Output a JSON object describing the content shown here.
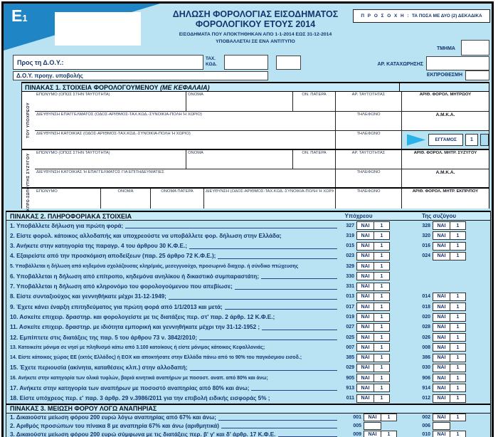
{
  "colors": {
    "page_blue": "#b9e2f3",
    "band_blue": "#c9ecfa",
    "logo_blue": "#1f85c4",
    "marker_cyan": "#29b2e8",
    "text_navy": "#16356f"
  },
  "header": {
    "form_code_main": "E",
    "form_code_sub": "1",
    "title_line1": "ΔΗΛΩΣΗ ΦΟΡΟΛΟΓΙΑΣ ΕΙΣΟΔΗΜΑΤΟΣ",
    "title_line2": "ΦΟΡΟΛΟΓΙΚΟΥ ΕΤΟΥΣ 2014",
    "subtitle_line1": "ΕΙΣΟΔΗΜΑΤΑ ΠΟΥ ΑΠΟΚΤΗΘΗΚΑΝ ΑΠΟ 1-1-2014 ΕΩΣ 31-12-2014",
    "subtitle_line2": "ΥΠΟΒΑΛΛΕΤΑΙ ΣΕ ΕΝΑ ΑΝΤΙΤΥΠΟ",
    "attention_label": "Π Ρ Ο Σ Ο Χ Η :",
    "attention_text": "ΤΑ ΠΟΣΑ ΜΕ ΔΥΟ (2) ΔΕΚΑΔΙΚΑ",
    "tmima_label": "ΤΜΗΜΑ",
    "ar_kataxorisis_label": "ΑΡ. ΚΑΤΑΧΩΡΗΣΗΣ",
    "ekprothesmi_label": "ΕΚΠΡΟΘΕΣΜΗ",
    "pros_doy_label": "Προς τη Δ.Ο.Υ.:",
    "tax_label": "ΤΑΧ.",
    "kod_label": "ΚΩΔ.",
    "doy_proig_label": "Δ.Ο.Υ. προηγ. υποβολής"
  },
  "table1": {
    "title": "ΠΙΝΑΚΑΣ 1.",
    "subtitle": "ΣΤΟΙΧΕΙΑ ΦΟΡΟΛΟΓΟΥΜΕΝΟΥ",
    "subtitle_caps": "(ΜΕ ΚΕΦΑΛΑΙΑ)",
    "obligor_label": "ΤΟΥ ΥΠΟΧΡΕΟΥ",
    "spouse_label": "ΤΗΣ ΣΥΖΥΓΟΥ",
    "rep_label": "ΕΚΠΡΟ-ΣΩΠΟΥ",
    "u1": {
      "eponymo": "ΕΠΩΝΥΜΟ (ΟΠΩΣ ΣΤΗΝ ΤΑΥΤΟΤΗΤΑ)",
      "onoma": "ΟΝΟΜΑ",
      "on_patera": "ΟΝ. ΠΑΤΕΡΑ",
      "ar_taytotitas": "ΑΡ. ΤΑΥΤΟΤΗΤΑΣ",
      "afm": "ΑΡΙΘ. ΦΟΡΟΛ. ΜΗΤΡΩΟΥ"
    },
    "u2": {
      "diefthynsi": "ΔΙΕΥΘΥΝΣΗ ΕΠΑΓΓΕΛΜΑΤΟΣ (ΟΔΟΣ-ΑΡΙΘΜΟΣ-ΤΑΧ.ΚΩΔ.-ΣΥΝΟΙΚΙΑ-ΠΟΛΗ Ή ΧΩΡΙΟ)",
      "tilefono": "ΤΗΛΕΦΩΝΟ",
      "amka": "Α.Μ.Κ.Α."
    },
    "u3": {
      "diefthynsi": "ΔΙΕΥΘΥΝΣΗ ΚΑΤΟΙΚΙΑΣ (ΟΔΟΣ-ΑΡΙΘΜΟΣ-ΤΑΧ.ΚΩΔ.-ΣΥΝΟΙΚΙΑ-ΠΟΛΗ Ή ΧΩΡΙΟ)",
      "tilefono": "ΤΗΛΕΦΩΝΟ",
      "eggamos": "ΕΓΓΑΜΟΣ",
      "eggamos_value": "1"
    },
    "s1": {
      "eponymo": "ΕΠΩΝΥΜΟ (ΟΠΩΣ ΣΤΗΝ ΤΑΥΤΟΤΗΤΑ)",
      "onoma": "ΟΝΟΜΑ",
      "on_patera": "ΟΝ. ΠΑΤΕΡΑ",
      "ar_taytotitas": "ΑΡ. ΤΑΥΤΟΤΗΤΑΣ",
      "afm": "ΑΡΙΘ. ΦΟΡΟΛ. ΜΗΤΡ. ΣΥΖΥΓΟΥ"
    },
    "s2": {
      "diefthynsi": "ΔΙΕΥΘΥΝΣΗ ΚΑΤΟΙΚΙΑΣ Ή ΕΠΑΓΓΕΛΜΑΤΟΣ ΓΙΑ ΕΠΙΤΗΔΕΥΜΑΤΙΕΣ",
      "tilefono": "ΤΗΛΕΦΩΝΟ",
      "amka": "Α.Μ.Κ.Α."
    },
    "r1": {
      "eponymo": "ΕΠΩΝΥΜΟ",
      "onoma": "ΟΝΟΜΑ",
      "onoma_patera": "ΟΝΟΜΑ ΠΑΤΕΡΑ",
      "diefthynsi": "ΔΙΕΥΘΥΝΣΗ (ΟΔΟΣ-ΑΡΙΘΜΟΣ-ΤΑΧ.ΚΩΔ.-ΣΥΝΟΙΚΙΑ-ΠΟΛΗ Ή ΧΩΡΙΟ)",
      "tilefono": "ΤΗΛΕΦΩΝΟ",
      "afm": "ΑΡΙΘ. ΦΟΡΟΛ. ΜΗΤΡ. ΕΚΠΡ/ΠΟΥ"
    }
  },
  "table2": {
    "title": "ΠΙΝΑΚΑΣ 2.",
    "subtitle": "ΠΛΗΡΟΦΟΡΙΑΚΑ ΣΤΟΙΧΕΙΑ",
    "col_self": "Υπόχρεου",
    "col_spouse": "Της συζύγου",
    "yes_label": "ΝΑΙ",
    "rows": [
      {
        "num": "1.",
        "text": "Υποβάλλετε δήλωση για πρώτη φορά;",
        "leader": true,
        "self": {
          "code": "327",
          "value": "1"
        },
        "spouse": {
          "code": "328",
          "value": "1"
        }
      },
      {
        "num": "2.",
        "text": "Είστε φορολ. κάτοικος αλλοδαπής και υποχρεούστε να υποβάλλετε φορ. δήλωση στην Ελλάδα;",
        "leader": false,
        "self": {
          "code": "319",
          "value": "1"
        },
        "spouse": {
          "code": "320",
          "value": "1"
        }
      },
      {
        "num": "3.",
        "text": "Ανήκετε στην κατηγορία της παραγρ. 4 του άρθρου 30 Κ.Φ.Ε.;",
        "leader": true,
        "self": {
          "code": "015",
          "value": "1"
        },
        "spouse": {
          "code": "016",
          "value": "1"
        }
      },
      {
        "num": "4.",
        "text": "Εξαιρείστε από την προσκόμιση αποδείξεων (παρ. 25 άρθρο 72 Κ.Φ.Ε.);",
        "leader": true,
        "self": {
          "code": "023",
          "value": "1"
        },
        "spouse": {
          "code": "024",
          "value": "1"
        }
      },
      {
        "num": "5.",
        "text": "Υποβάλλεται η δήλωση από κηδεμόνα σχολάζουσας κληρ/μιάς, μεσεγγυούχο, προσωρινό διαχειρ. ή σύνδικο πτώχευσης",
        "leader": false,
        "self": {
          "code": "329",
          "value": "1"
        },
        "spouse": null
      },
      {
        "num": "6.",
        "text": "Υποβάλλεται η δήλωση από επίτροπο, κηδεμόνα ανηλίκου ή δικαστικό συμπαραστάτη;",
        "leader": true,
        "self": {
          "code": "330",
          "value": "1"
        },
        "spouse": null
      },
      {
        "num": "7.",
        "text": "Υποβάλλεται η δήλωση από κληρονόμο του φορολογούμενου που απεβίωσε;",
        "leader": true,
        "self": {
          "code": "331",
          "value": "1"
        },
        "spouse": null
      },
      {
        "num": "8.",
        "text": "Είστε συνταξιούχος και γεννηθήκατε μέχρι 31-12-1949;",
        "leader": true,
        "self": {
          "code": "013",
          "value": "1"
        },
        "spouse": {
          "code": "014",
          "value": "1"
        }
      },
      {
        "num": "9.",
        "text": "Έχετε κάνει έναρξη επιτηδεύματος για πρώτη φορά από 1/1/2013 και μετά;",
        "leader": true,
        "self": {
          "code": "017",
          "value": "1"
        },
        "spouse": {
          "code": "018",
          "value": "1"
        }
      },
      {
        "num": "10.",
        "text": "Ασκείτε επιχειρ. δραστηρ. και φορολογείστε με τις διατάξεις  περ. στ' παρ. 2 άρθρ. 12  Κ.Φ.Ε.;",
        "leader": false,
        "self": {
          "code": "019",
          "value": "1"
        },
        "spouse": {
          "code": "020",
          "value": "1"
        }
      },
      {
        "num": "11.",
        "text": "Ασκείτε επιχειρ. δραστηρ. με ιδιότητα εμπορική  και γεννηθήκατε μέχρι την 31-12-1952 ;",
        "leader": true,
        "self": {
          "code": "027",
          "value": "1"
        },
        "spouse": {
          "code": "028",
          "value": "1"
        }
      },
      {
        "num": "12.",
        "text": "Εμπίπτετε στις διατάξεις της παρ. 5 του άρθρου 73 ν. 3842/2010;",
        "leader": true,
        "self": {
          "code": "025",
          "value": "1"
        },
        "spouse": {
          "code": "026",
          "value": "1"
        }
      },
      {
        "num": "13.",
        "text": "Κατοικείτε μόνιμα σε νησί με πληθυσμό κάτω από 3.100 κατοίκους ή είστε μόνιμος κάτοικος Κεφαλλονιάς;",
        "leader": false,
        "self": {
          "code": "007",
          "value": "1"
        },
        "spouse": {
          "code": "008",
          "value": "1"
        }
      },
      {
        "num": "14.",
        "text": "Είστε κάτοικος χώρας ΕΕ (εκτός Ελλάδος) ή ΕΟΧ και αποκτήσατε στην Ελλάδα πάνω από το 90% του παγκόσμιου εισοδ.;",
        "leader": false,
        "self": {
          "code": "385",
          "value": "1"
        },
        "spouse": {
          "code": "386",
          "value": "1"
        }
      },
      {
        "num": "15.",
        "text": "Έχετε περιουσία (ακίνητα, καταθέσεις κλπ.)  στην αλλοδαπή;",
        "leader": true,
        "self": {
          "code": "029",
          "value": "1"
        },
        "spouse": {
          "code": "030",
          "value": "1"
        }
      },
      {
        "num": "16.",
        "text": "Ανήκετε στην κατηγορία των ολικά τυφλών, βαριά κινητικά αναπήρων με ποσοστ. αναπ. από 80% και άνω;",
        "leader": false,
        "self": {
          "code": "905",
          "value": "1"
        },
        "spouse": {
          "code": "906",
          "value": "1"
        }
      },
      {
        "num": "17.",
        "text": "Ανήκετε στην κατηγορία των αναπήρων με ποσοστό αναπηρίας από 80% και άνω;",
        "leader": true,
        "self": {
          "code": "913",
          "value": "1"
        },
        "spouse": {
          "code": "914",
          "value": "1"
        }
      },
      {
        "num": "18.",
        "text": "Είστε υπόχρεος περ. ε' παρ. 3 άρθρ. 29 ν.3986/2011 για την επιβολή ειδικής εισφοράς 5% ;",
        "leader": false,
        "self": {
          "code": "011",
          "value": "1"
        },
        "spouse": {
          "code": "012",
          "value": "1"
        }
      }
    ]
  },
  "table3": {
    "title": "ΠΙΝΑΚΑΣ 3.",
    "subtitle": "ΜΕΙΩΣΗ ΦΟΡΟΥ ΛΟΓΩ ΑΝΑΠΗΡΙΑΣ",
    "rows": [
      {
        "num": "1.",
        "text": "Δικαιούστε μείωση φόρου 200 ευρώ λόγω αναπηρίας από 67% και άνω;",
        "leader": true,
        "self": {
          "code": "001",
          "value": "1"
        },
        "spouse": {
          "code": "002",
          "value": "1"
        }
      },
      {
        "num": "2.",
        "text": "Αριθμός προσώπων του πίνακα 8 με αναπηρία 67% και άνω (αριθμητικά)",
        "leader": true,
        "self": {
          "code": "005",
          "yes": false
        },
        "spouse": {
          "code": "006",
          "yes": false
        }
      },
      {
        "num": "3.",
        "text": "Δικαιούστε μείωση φόρου 200 ευρώ σύμφωνα με τις διατάξεις περ. β' γ' και δ' άρθρ. 17 Κ.Φ.Ε.",
        "leader": true,
        "self": {
          "code": "009",
          "value": "1"
        },
        "spouse": {
          "code": "010",
          "value": "1"
        }
      }
    ]
  }
}
